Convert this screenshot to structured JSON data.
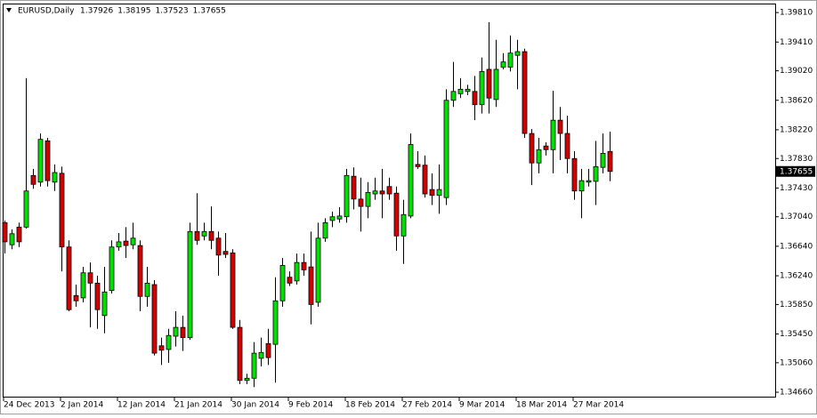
{
  "chart_data": {
    "type": "candlestick",
    "title": "EURUSD,Daily",
    "categories": [
      "24 Dec 2013",
      null,
      null,
      null,
      null,
      null,
      null,
      null,
      "2 Jan 2014",
      null,
      null,
      null,
      null,
      null,
      null,
      null,
      "12 Jan 2014",
      null,
      null,
      null,
      null,
      null,
      null,
      null,
      "21 Jan 2014",
      null,
      null,
      null,
      null,
      null,
      null,
      null,
      "30 Jan 2014",
      null,
      null,
      null,
      null,
      null,
      null,
      null,
      "9 Feb 2014",
      null,
      null,
      null,
      null,
      null,
      null,
      null,
      "18 Feb 2014",
      null,
      null,
      null,
      null,
      null,
      null,
      null,
      "27 Feb 2014",
      null,
      null,
      null,
      null,
      null,
      null,
      null,
      "9 Mar 2014",
      null,
      null,
      null,
      null,
      null,
      null,
      null,
      "18 Mar 2014",
      null,
      null,
      null,
      null,
      null,
      null,
      null,
      "27 Mar 2014",
      null,
      null,
      null,
      null,
      null
    ],
    "open": [
      1.3696,
      1.3666,
      1.369,
      1.369,
      1.376,
      1.3751,
      1.3807,
      1.3751,
      1.3763,
      1.3663,
      1.3597,
      1.3594,
      1.3628,
      1.3614,
      1.357,
      1.3604,
      1.3663,
      1.3671,
      1.3666,
      1.3665,
      1.3596,
      1.3612,
      1.3529,
      1.3524,
      1.3542,
      1.3554,
      1.354,
      1.3684,
      1.3678,
      1.3684,
      1.3675,
      1.3657,
      1.3655,
      1.3554,
      1.3482,
      1.3485,
      1.3512,
      1.3532,
      1.3531,
      1.359,
      1.3622,
      1.3617,
      1.3642,
      1.3636,
      1.3588,
      1.3675,
      1.3699,
      1.3701,
      1.3704,
      1.3759,
      1.3728,
      1.3718,
      1.3735,
      1.3739,
      1.3745,
      1.3736,
      1.3678,
      1.3705,
      1.3775,
      1.3774,
      1.3741,
      1.3733,
      1.373,
      1.3862,
      1.3871,
      1.3874,
      1.3874,
      1.3856,
      1.3904,
      1.3863,
      1.3907,
      1.3907,
      1.3923,
      1.3928,
      1.3817,
      1.3777,
      1.38,
      1.3795,
      1.3835,
      1.3817,
      1.3783,
      1.3739,
      1.3751,
      1.3752,
      1.3771,
      1.37926
    ],
    "high": [
      1.3699,
      1.3687,
      1.3696,
      1.3892,
      1.3769,
      1.3817,
      1.3811,
      1.3775,
      1.3772,
      1.3672,
      1.3612,
      1.3636,
      1.3642,
      1.3624,
      1.3636,
      1.3672,
      1.3682,
      1.369,
      1.3696,
      1.3672,
      1.3636,
      1.3618,
      1.354,
      1.3552,
      1.3576,
      1.357,
      1.3696,
      1.3736,
      1.3696,
      1.3718,
      1.3684,
      1.3682,
      1.366,
      1.3564,
      1.3491,
      1.3534,
      1.354,
      1.3552,
      1.3622,
      1.3648,
      1.363,
      1.3654,
      1.3654,
      1.3684,
      1.3696,
      1.3702,
      1.3711,
      1.3717,
      1.3769,
      1.3771,
      1.3757,
      1.3751,
      1.3757,
      1.3769,
      1.3757,
      1.3745,
      1.3727,
      1.3817,
      1.3793,
      1.3787,
      1.3763,
      1.3775,
      1.3877,
      1.3914,
      1.3892,
      1.3883,
      1.3895,
      1.392,
      1.3968,
      1.3944,
      1.3926,
      1.395,
      1.3944,
      1.3932,
      1.3823,
      1.3811,
      1.3805,
      1.3875,
      1.3853,
      1.3841,
      1.3793,
      1.3769,
      1.3769,
      1.3807,
      1.3817,
      1.38195
    ],
    "low": [
      1.3654,
      1.366,
      1.3663,
      1.3688,
      1.3742,
      1.3745,
      1.3745,
      1.3739,
      1.363,
      1.3576,
      1.3582,
      1.3588,
      1.3554,
      1.3552,
      1.3546,
      1.36,
      1.3658,
      1.3648,
      1.366,
      1.3576,
      1.3582,
      1.3516,
      1.3503,
      1.3506,
      1.3528,
      1.3522,
      1.3537,
      1.3666,
      1.3672,
      1.366,
      1.3624,
      1.3648,
      1.3552,
      1.3477,
      1.3477,
      1.3473,
      1.3501,
      1.3503,
      1.3479,
      1.3582,
      1.361,
      1.3612,
      1.3624,
      1.3558,
      1.3582,
      1.367,
      1.369,
      1.3696,
      1.3696,
      1.3714,
      1.3684,
      1.3702,
      1.3727,
      1.3702,
      1.3727,
      1.3658,
      1.364,
      1.3702,
      1.3769,
      1.373,
      1.372,
      1.3708,
      1.372,
      1.3853,
      1.3865,
      1.3869,
      1.3835,
      1.3844,
      1.3844,
      1.3853,
      1.3904,
      1.3901,
      1.3877,
      1.3811,
      1.3747,
      1.3763,
      1.3787,
      1.3763,
      1.3781,
      1.3763,
      1.3727,
      1.3702,
      1.3745,
      1.372,
      1.3763,
      1.37523
    ],
    "close": [
      1.367,
      1.3681,
      1.367,
      1.3739,
      1.3748,
      1.3809,
      1.3753,
      1.3764,
      1.3663,
      1.3578,
      1.359,
      1.3628,
      1.3614,
      1.3578,
      1.3602,
      1.3663,
      1.367,
      1.3665,
      1.3675,
      1.3596,
      1.3614,
      1.3519,
      1.3523,
      1.3543,
      1.3554,
      1.354,
      1.3684,
      1.3672,
      1.3684,
      1.3672,
      1.3652,
      1.3653,
      1.3554,
      1.3482,
      1.3485,
      1.3519,
      1.352,
      1.3513,
      1.359,
      1.3638,
      1.3614,
      1.3642,
      1.3632,
      1.3585,
      1.3675,
      1.3696,
      1.3704,
      1.3705,
      1.376,
      1.3728,
      1.3718,
      1.3737,
      1.3739,
      1.3735,
      1.3735,
      1.3678,
      1.3707,
      1.3802,
      1.3772,
      1.3735,
      1.3733,
      1.3741,
      1.3862,
      1.3874,
      1.3877,
      1.3877,
      1.3856,
      1.3901,
      1.3865,
      1.3904,
      1.3914,
      1.3926,
      1.3928,
      1.3817,
      1.3777,
      1.3795,
      1.3795,
      1.3835,
      1.3817,
      1.3783,
      1.3739,
      1.3753,
      1.3753,
      1.3772,
      1.379,
      1.37655
    ],
    "up_color": "#00e000",
    "down_color": "#d00000",
    "ylim": [
      1.346,
      1.3992
    ],
    "yticks": [
      {
        "value": 1.3981,
        "label": "1.39810"
      },
      {
        "value": 1.3941,
        "label": "1.39410"
      },
      {
        "value": 1.3902,
        "label": "1.39020"
      },
      {
        "value": 1.3862,
        "label": "1.38620"
      },
      {
        "value": 1.3822,
        "label": "1.38220"
      },
      {
        "value": 1.3783,
        "label": "1.37830"
      },
      {
        "value": 1.3743,
        "label": "1.37430"
      },
      {
        "value": 1.3704,
        "label": "1.37040"
      },
      {
        "value": 1.3664,
        "label": "1.36640"
      },
      {
        "value": 1.3624,
        "label": "1.36240"
      },
      {
        "value": 1.3585,
        "label": "1.35850"
      },
      {
        "value": 1.3545,
        "label": "1.35450"
      },
      {
        "value": 1.3506,
        "label": "1.35060"
      },
      {
        "value": 1.3466,
        "label": "1.34660"
      }
    ],
    "grid": false
  }
}
